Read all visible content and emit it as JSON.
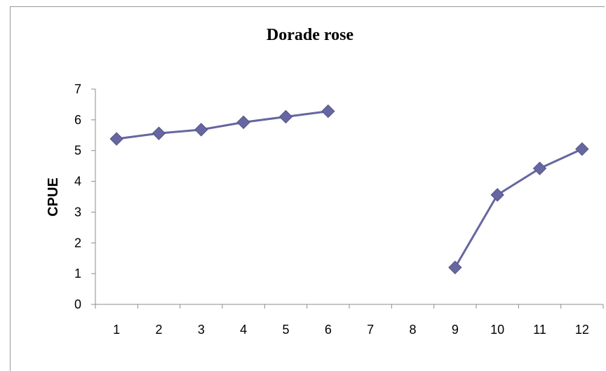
{
  "chart_data": {
    "type": "line",
    "title": "Dorade rose",
    "xlabel": "",
    "ylabel": "CPUE",
    "categories": [
      "1",
      "2",
      "3",
      "4",
      "5",
      "6",
      "7",
      "8",
      "9",
      "10",
      "11",
      "12"
    ],
    "ylim": [
      0,
      7
    ],
    "yticks": [
      "0",
      "1",
      "2",
      "3",
      "4",
      "5",
      "6",
      "7"
    ],
    "grid": false,
    "series": [
      {
        "color": "#6666a0",
        "values": [
          5.38,
          5.56,
          5.68,
          5.92,
          6.1,
          6.28,
          null,
          null,
          1.2,
          3.56,
          4.42,
          5.05
        ]
      }
    ]
  }
}
